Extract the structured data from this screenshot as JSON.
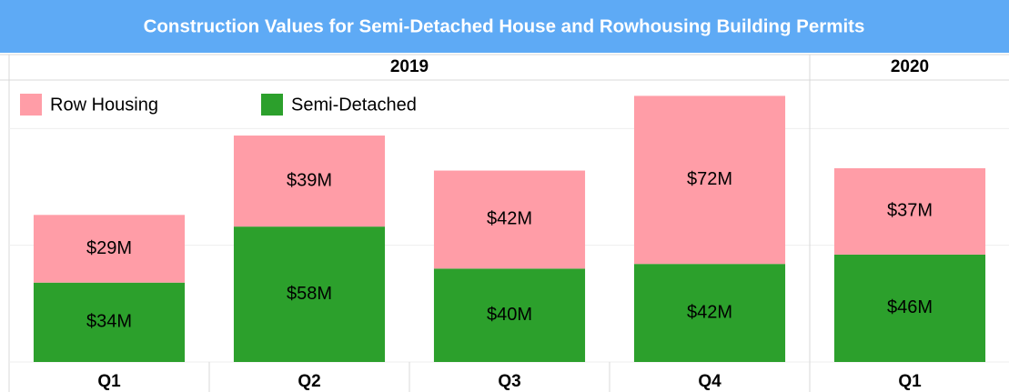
{
  "chart_data": {
    "type": "stacked_bar",
    "title": "Construction Values for Semi-Detached House and Rowhousing Building Permits",
    "groups": [
      {
        "name": "2019",
        "categories": [
          "Q1",
          "Q2",
          "Q3",
          "Q4"
        ]
      },
      {
        "name": "2020",
        "categories": [
          "Q1"
        ]
      }
    ],
    "series": [
      {
        "name": "Semi-Detached",
        "color": "#2ca02c",
        "values": [
          34,
          58,
          40,
          42,
          46
        ],
        "value_labels": [
          "$34M",
          "$58M",
          "$40M",
          "$42M",
          "$46M"
        ]
      },
      {
        "name": "Row Housing",
        "color": "#ff9da7",
        "values": [
          29,
          39,
          42,
          72,
          37
        ],
        "value_labels": [
          "$29M",
          "$39M",
          "$42M",
          "$72M",
          "$37M"
        ]
      }
    ],
    "ylim": [
      0,
      120
    ],
    "yticks": [
      0,
      50,
      100
    ],
    "grid": true,
    "legend": "top-left",
    "title_color": "#5eaaf5"
  }
}
